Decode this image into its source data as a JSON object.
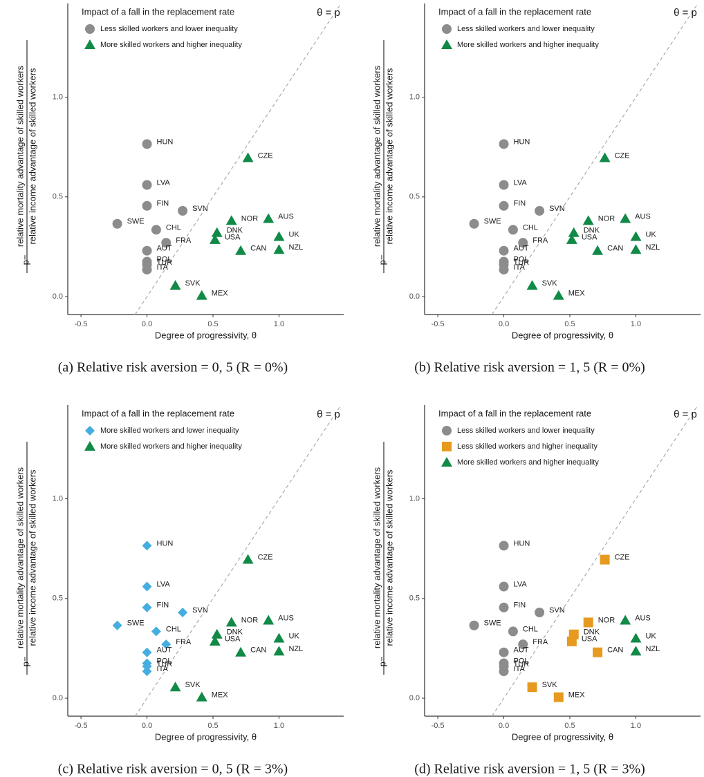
{
  "chart_data": [
    {
      "type": "scatter",
      "caption": "(a) Relative risk aversion = 0, 5 (R = 0%)",
      "legend_title": "Impact of a fall in the replacement rate",
      "xlabel": "Degree of progressivity, θ",
      "ylabel_prefix": "p=",
      "ylabel_numerator": "relative mortality advantage of skilled workers",
      "ylabel_denominator": "relative income advantage of skilled workers",
      "diagonal": true,
      "diagonal_label": "θ = p",
      "grid": false,
      "xlim": [
        -0.6,
        1.49
      ],
      "ylim": [
        -0.09,
        1.47
      ],
      "xticks": [
        -0.5,
        {
          "value": 0,
          "label": "0.0"
        },
        0.5,
        {
          "value": 1,
          "label": "1.0"
        }
      ],
      "yticks": [
        {
          "value": 0,
          "label": "0.0"
        },
        0.5,
        {
          "value": 1,
          "label": "1.0"
        }
      ],
      "series": [
        {
          "name": "Less skilled workers and lower inequality",
          "color": "#8c8c8c",
          "marker": "circle",
          "labels": [
            "HUN",
            "LVA",
            "FIN",
            "SWE",
            "SVN",
            "CHL",
            "FRA",
            "AUT",
            "POL",
            "TUR",
            "ITA"
          ],
          "x": [
            0,
            0,
            0,
            -0.225,
            0.27,
            0.07,
            0.145,
            0,
            0,
            0,
            0
          ],
          "values": [
            0.765,
            0.56,
            0.455,
            0.365,
            0.43,
            0.335,
            0.27,
            0.23,
            0.175,
            0.16,
            0.135
          ]
        },
        {
          "name": "More skilled workers and higher inequality",
          "color": "#118a47",
          "marker": "triangle",
          "labels": [
            "CZE",
            "NOR",
            "AUS",
            "DNK",
            "USA",
            "UK",
            "CAN",
            "NZL",
            "SVK",
            "MEX"
          ],
          "x": [
            0.765,
            0.64,
            0.92,
            0.53,
            0.515,
            1.0,
            0.71,
            1.0,
            0.215,
            0.415
          ],
          "values": [
            0.695,
            0.38,
            0.39,
            0.32,
            0.285,
            0.3,
            0.23,
            0.235,
            0.055,
            0.005
          ]
        }
      ]
    },
    {
      "type": "scatter",
      "caption": "(b) Relative risk aversion = 1, 5 (R = 0%)",
      "legend_title": "Impact of a fall in the replacement rate",
      "xlabel": "Degree of progressivity, θ",
      "ylabel_prefix": "p=",
      "ylabel_numerator": "relative mortality advantage of skilled workers",
      "ylabel_denominator": "relative income advantage of skilled workers",
      "diagonal": true,
      "diagonal_label": "θ = p",
      "grid": false,
      "xlim": [
        -0.6,
        1.49
      ],
      "ylim": [
        -0.09,
        1.47
      ],
      "xticks": [
        -0.5,
        {
          "value": 0,
          "label": "0.0"
        },
        0.5,
        {
          "value": 1,
          "label": "1.0"
        }
      ],
      "yticks": [
        {
          "value": 0,
          "label": "0.0"
        },
        0.5,
        {
          "value": 1,
          "label": "1.0"
        }
      ],
      "series": [
        {
          "name": "Less skilled workers and lower inequality",
          "color": "#8c8c8c",
          "marker": "circle",
          "labels": [
            "HUN",
            "LVA",
            "FIN",
            "SWE",
            "SVN",
            "CHL",
            "FRA",
            "AUT",
            "POL",
            "TUR",
            "ITA"
          ],
          "x": [
            0,
            0,
            0,
            -0.225,
            0.27,
            0.07,
            0.145,
            0,
            0,
            0,
            0
          ],
          "values": [
            0.765,
            0.56,
            0.455,
            0.365,
            0.43,
            0.335,
            0.27,
            0.23,
            0.175,
            0.16,
            0.135
          ]
        },
        {
          "name": "More skilled workers and higher inequality",
          "color": "#118a47",
          "marker": "triangle",
          "labels": [
            "CZE",
            "NOR",
            "AUS",
            "DNK",
            "USA",
            "UK",
            "CAN",
            "NZL",
            "SVK",
            "MEX"
          ],
          "x": [
            0.765,
            0.64,
            0.92,
            0.53,
            0.515,
            1.0,
            0.71,
            1.0,
            0.215,
            0.415
          ],
          "values": [
            0.695,
            0.38,
            0.39,
            0.32,
            0.285,
            0.3,
            0.23,
            0.235,
            0.055,
            0.005
          ]
        }
      ]
    },
    {
      "type": "scatter",
      "caption": "(c) Relative risk aversion = 0, 5 (R = 3%)",
      "legend_title": "Impact of a fall in the replacement rate",
      "xlabel": "Degree of progressivity, θ",
      "ylabel_prefix": "p=",
      "ylabel_numerator": "relative mortality advantage of skilled workers",
      "ylabel_denominator": "relative income advantage of skilled workers",
      "diagonal": true,
      "diagonal_label": "θ = p",
      "grid": false,
      "xlim": [
        -0.6,
        1.49
      ],
      "ylim": [
        -0.09,
        1.47
      ],
      "xticks": [
        -0.5,
        {
          "value": 0,
          "label": "0.0"
        },
        0.5,
        {
          "value": 1,
          "label": "1.0"
        }
      ],
      "yticks": [
        {
          "value": 0,
          "label": "0.0"
        },
        0.5,
        {
          "value": 1,
          "label": "1.0"
        }
      ],
      "series": [
        {
          "name": "More skilled workers and lower inequality",
          "color": "#45ade0",
          "marker": "diamond",
          "labels": [
            "HUN",
            "LVA",
            "FIN",
            "SWE",
            "SVN",
            "CHL",
            "FRA",
            "AUT",
            "POL",
            "TUR",
            "ITA"
          ],
          "x": [
            0,
            0,
            0,
            -0.225,
            0.27,
            0.07,
            0.145,
            0,
            0,
            0,
            0
          ],
          "values": [
            0.765,
            0.56,
            0.455,
            0.365,
            0.43,
            0.335,
            0.27,
            0.23,
            0.175,
            0.16,
            0.135
          ]
        },
        {
          "name": "More skilled workers and higher inequality",
          "color": "#118a47",
          "marker": "triangle",
          "labels": [
            "CZE",
            "NOR",
            "AUS",
            "DNK",
            "USA",
            "UK",
            "CAN",
            "NZL",
            "SVK",
            "MEX"
          ],
          "x": [
            0.765,
            0.64,
            0.92,
            0.53,
            0.515,
            1.0,
            0.71,
            1.0,
            0.215,
            0.415
          ],
          "values": [
            0.695,
            0.38,
            0.39,
            0.32,
            0.285,
            0.3,
            0.23,
            0.235,
            0.055,
            0.005
          ]
        }
      ]
    },
    {
      "type": "scatter",
      "caption": "(d) Relative risk aversion = 1, 5 (R = 3%)",
      "legend_title": "Impact of a fall in the replacement rate",
      "xlabel": "Degree of progressivity, θ",
      "ylabel_prefix": "p=",
      "ylabel_numerator": "relative mortality advantage of skilled workers",
      "ylabel_denominator": "relative income advantage of skilled workers",
      "diagonal": true,
      "diagonal_label": "θ = p",
      "grid": false,
      "xlim": [
        -0.6,
        1.49
      ],
      "ylim": [
        -0.09,
        1.47
      ],
      "xticks": [
        -0.5,
        {
          "value": 0,
          "label": "0.0"
        },
        0.5,
        {
          "value": 1,
          "label": "1.0"
        }
      ],
      "yticks": [
        {
          "value": 0,
          "label": "0.0"
        },
        0.5,
        {
          "value": 1,
          "label": "1.0"
        }
      ],
      "series": [
        {
          "name": "Less skilled workers and lower inequality",
          "color": "#8c8c8c",
          "marker": "circle",
          "labels": [
            "HUN",
            "LVA",
            "FIN",
            "SWE",
            "SVN",
            "CHL",
            "FRA",
            "AUT",
            "POL",
            "TUR",
            "ITA"
          ],
          "x": [
            0,
            0,
            0,
            -0.225,
            0.27,
            0.07,
            0.145,
            0,
            0,
            0,
            0
          ],
          "values": [
            0.765,
            0.56,
            0.455,
            0.365,
            0.43,
            0.335,
            0.27,
            0.23,
            0.175,
            0.16,
            0.135
          ]
        },
        {
          "name": "Less skilled workers and higher inequality",
          "color": "#e69a1f",
          "marker": "square",
          "labels": [
            "CZE",
            "NOR",
            "DNK",
            "USA",
            "CAN",
            "SVK",
            "MEX"
          ],
          "x": [
            0.765,
            0.64,
            0.53,
            0.515,
            0.71,
            0.215,
            0.415
          ],
          "values": [
            0.695,
            0.38,
            0.32,
            0.285,
            0.23,
            0.055,
            0.005
          ]
        },
        {
          "name": "More skilled workers and higher inequality",
          "color": "#118a47",
          "marker": "triangle",
          "labels": [
            "AUS",
            "UK",
            "NZL"
          ],
          "x": [
            0.92,
            1.0,
            1.0
          ],
          "values": [
            0.39,
            0.3,
            0.235
          ]
        }
      ]
    }
  ]
}
